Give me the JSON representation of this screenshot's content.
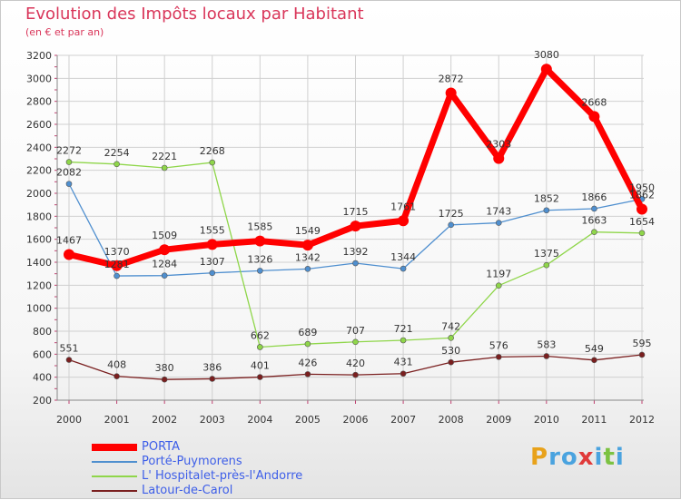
{
  "header": {
    "title": "Evolution des Impôts locaux par Habitant",
    "subtitle": "(en € et par an)"
  },
  "colors": {
    "title": "#d9365a",
    "legend_text": "#3d5ee8",
    "grid": "#d0d0d0",
    "axis": "#888888"
  },
  "chart_data": {
    "type": "line",
    "title": "Evolution des Impôts locaux par Habitant",
    "subtitle": "(en € et par an)",
    "xlabel": "",
    "ylabel": "",
    "categories": [
      "2000",
      "2001",
      "2002",
      "2003",
      "2004",
      "2005",
      "2006",
      "2007",
      "2008",
      "2009",
      "2010",
      "2011",
      "2012"
    ],
    "ylim": [
      200,
      3200
    ],
    "yticks": [
      200,
      400,
      600,
      800,
      1000,
      1200,
      1400,
      1600,
      1800,
      2000,
      2200,
      2400,
      2600,
      2800,
      3000,
      3200
    ],
    "grid": true,
    "legend_position": "bottom-left",
    "series": [
      {
        "name": "PORTA",
        "color": "#ff0000",
        "emphasis": true,
        "values": [
          1467,
          1370,
          1509,
          1555,
          1585,
          1549,
          1715,
          1761,
          2872,
          2303,
          3080,
          2668,
          1862
        ],
        "labels": [
          "1467",
          "1370",
          "1509",
          "1555",
          "1585",
          "1549",
          "1715",
          "1761",
          "2872",
          "2303",
          "3080",
          "2668",
          "1862"
        ]
      },
      {
        "name": "Porté-Puymorens",
        "color": "#4f8fcf",
        "emphasis": false,
        "values": [
          2082,
          1281,
          1284,
          1307,
          1326,
          1342,
          1392,
          1344,
          1725,
          1743,
          1852,
          1866,
          1950
        ],
        "labels": [
          "2082",
          "1281",
          "1284",
          "1307",
          "1326",
          "1342",
          "1392",
          "1344",
          "1725",
          "1743",
          "1852",
          "1866",
          "1950"
        ]
      },
      {
        "name": "L' Hospitalet-près-l'Andorre",
        "color": "#8fd64a",
        "emphasis": false,
        "values": [
          2272,
          2254,
          2221,
          2268,
          662,
          689,
          707,
          721,
          742,
          1197,
          1375,
          1663,
          1654
        ],
        "labels": [
          "2272",
          "2254",
          "2221",
          "2268",
          "662",
          "689",
          "707",
          "721",
          "742",
          "1197",
          "1375",
          "1663",
          "1654"
        ]
      },
      {
        "name": "Latour-de-Carol",
        "color": "#7a1f1f",
        "emphasis": false,
        "values": [
          551,
          408,
          380,
          386,
          401,
          426,
          420,
          431,
          530,
          576,
          583,
          549,
          595
        ],
        "labels": [
          "551",
          "408",
          "380",
          "386",
          "401",
          "426",
          "420",
          "431",
          "530",
          "576",
          "583",
          "549",
          "595"
        ]
      }
    ]
  },
  "logo": {
    "letters": [
      "P",
      "r",
      "o",
      "x",
      "i",
      "t",
      "i"
    ],
    "colors": [
      "#e8a21b",
      "#4aa3df",
      "#4aa3df",
      "#e03a3a",
      "#4aa3df",
      "#7cc242",
      "#4aa3df"
    ]
  }
}
